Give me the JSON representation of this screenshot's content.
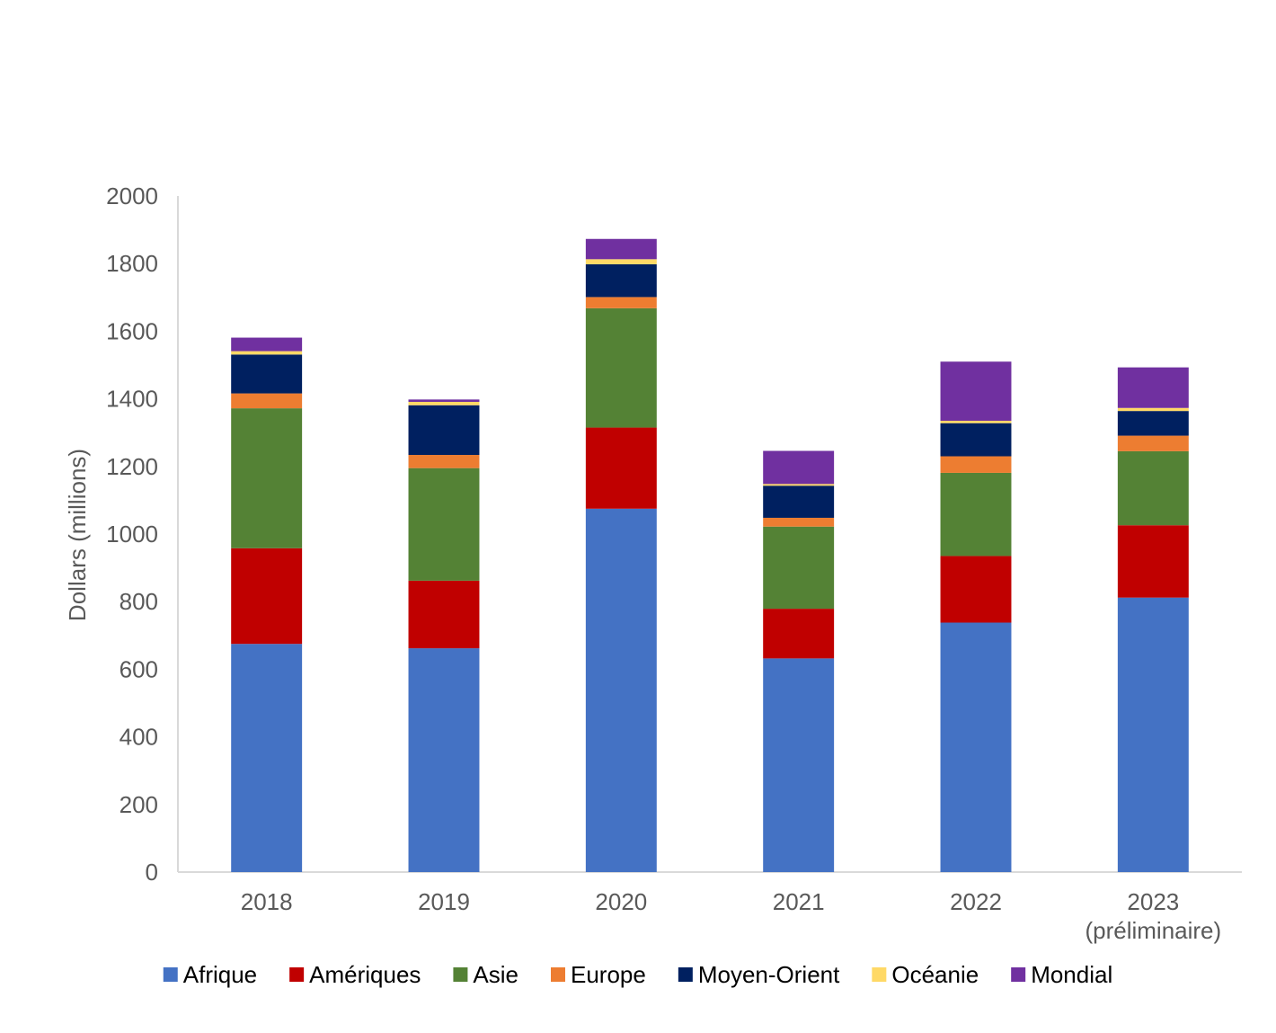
{
  "chart_data": {
    "type": "bar",
    "stacked": true,
    "title": "",
    "xlabel": "",
    "ylabel": "Dollars (millions)",
    "ylim": [
      0,
      2000
    ],
    "yticks": [
      0,
      200,
      400,
      600,
      800,
      1000,
      1200,
      1400,
      1600,
      1800,
      2000
    ],
    "categories": [
      {
        "line1": "2018",
        "line2": ""
      },
      {
        "line1": "2019",
        "line2": ""
      },
      {
        "line1": "2020",
        "line2": ""
      },
      {
        "line1": "2021",
        "line2": ""
      },
      {
        "line1": "2022",
        "line2": ""
      },
      {
        "line1": "2023",
        "line2": "(préliminaire)"
      }
    ],
    "series": [
      {
        "name": "Afrique",
        "color": "#4472C4",
        "values": [
          675,
          662,
          1075,
          632,
          738,
          812
        ]
      },
      {
        "name": "Amériques",
        "color": "#C00000",
        "values": [
          283,
          200,
          240,
          147,
          197,
          214
        ]
      },
      {
        "name": "Asie",
        "color": "#548235",
        "values": [
          414,
          333,
          353,
          243,
          246,
          219
        ]
      },
      {
        "name": "Europe",
        "color": "#ED7D31",
        "values": [
          44,
          39,
          33,
          26,
          49,
          46
        ]
      },
      {
        "name": "Moyen-Orient",
        "color": "#002060",
        "values": [
          115,
          147,
          97,
          95,
          98,
          73
        ]
      },
      {
        "name": "Océanie",
        "color": "#FFD966",
        "values": [
          10,
          10,
          15,
          5,
          7,
          9
        ]
      },
      {
        "name": "Mondial",
        "color": "#7030A0",
        "values": [
          40,
          7,
          60,
          98,
          175,
          120
        ]
      }
    ],
    "legend_position": "bottom"
  }
}
